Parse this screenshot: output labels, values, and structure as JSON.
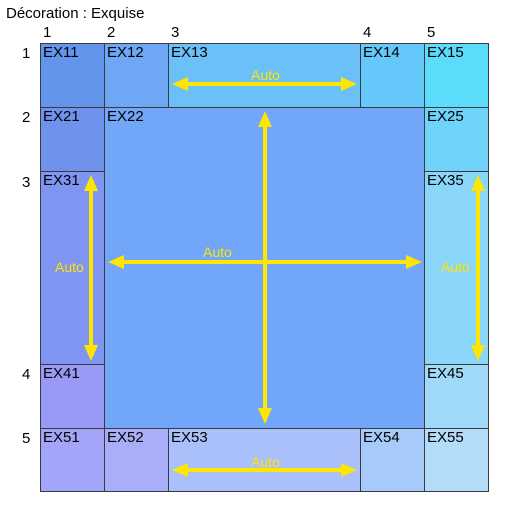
{
  "title": "Décoration : Exquise",
  "column_labels": [
    "1",
    "2",
    "3",
    "4",
    "5"
  ],
  "row_labels": [
    "1",
    "2",
    "3",
    "4",
    "5"
  ],
  "cells": {
    "ex11": "EX11",
    "ex12": "EX12",
    "ex13": "EX13",
    "ex14": "EX14",
    "ex15": "EX15",
    "ex21": "EX21",
    "ex22": "EX22",
    "ex25": "EX25",
    "ex31": "EX31",
    "ex35": "EX35",
    "ex41": "EX41",
    "ex45": "EX45",
    "ex51": "EX51",
    "ex52": "EX52",
    "ex53": "EX53",
    "ex54": "EX54",
    "ex55": "EX55"
  },
  "auto_labels": {
    "top": "Auto",
    "center": "Auto",
    "left": "Auto",
    "right": "Auto",
    "bottom": "Auto"
  },
  "colors": {
    "arrow": "#FFE600",
    "border": "#3a3a3a",
    "ex11": "#6495ED",
    "ex12": "#6EA8F5",
    "ex13": "#6CC0F8",
    "ex14": "#64C8FA",
    "ex15": "#5CDCFB",
    "ex21": "#6F93EC",
    "ex22": "#72A6F8",
    "ex25": "#70D4FA",
    "ex31": "#7F95F2",
    "ex35": "#8AD6F8",
    "ex41": "#9999F8",
    "ex45": "#A0DAF8",
    "ex51": "#A3A6F8",
    "ex52": "#A8AEFA",
    "ex53": "#AAC0FB",
    "ex54": "#A6CBFA",
    "ex55": "#B2DCF8"
  }
}
